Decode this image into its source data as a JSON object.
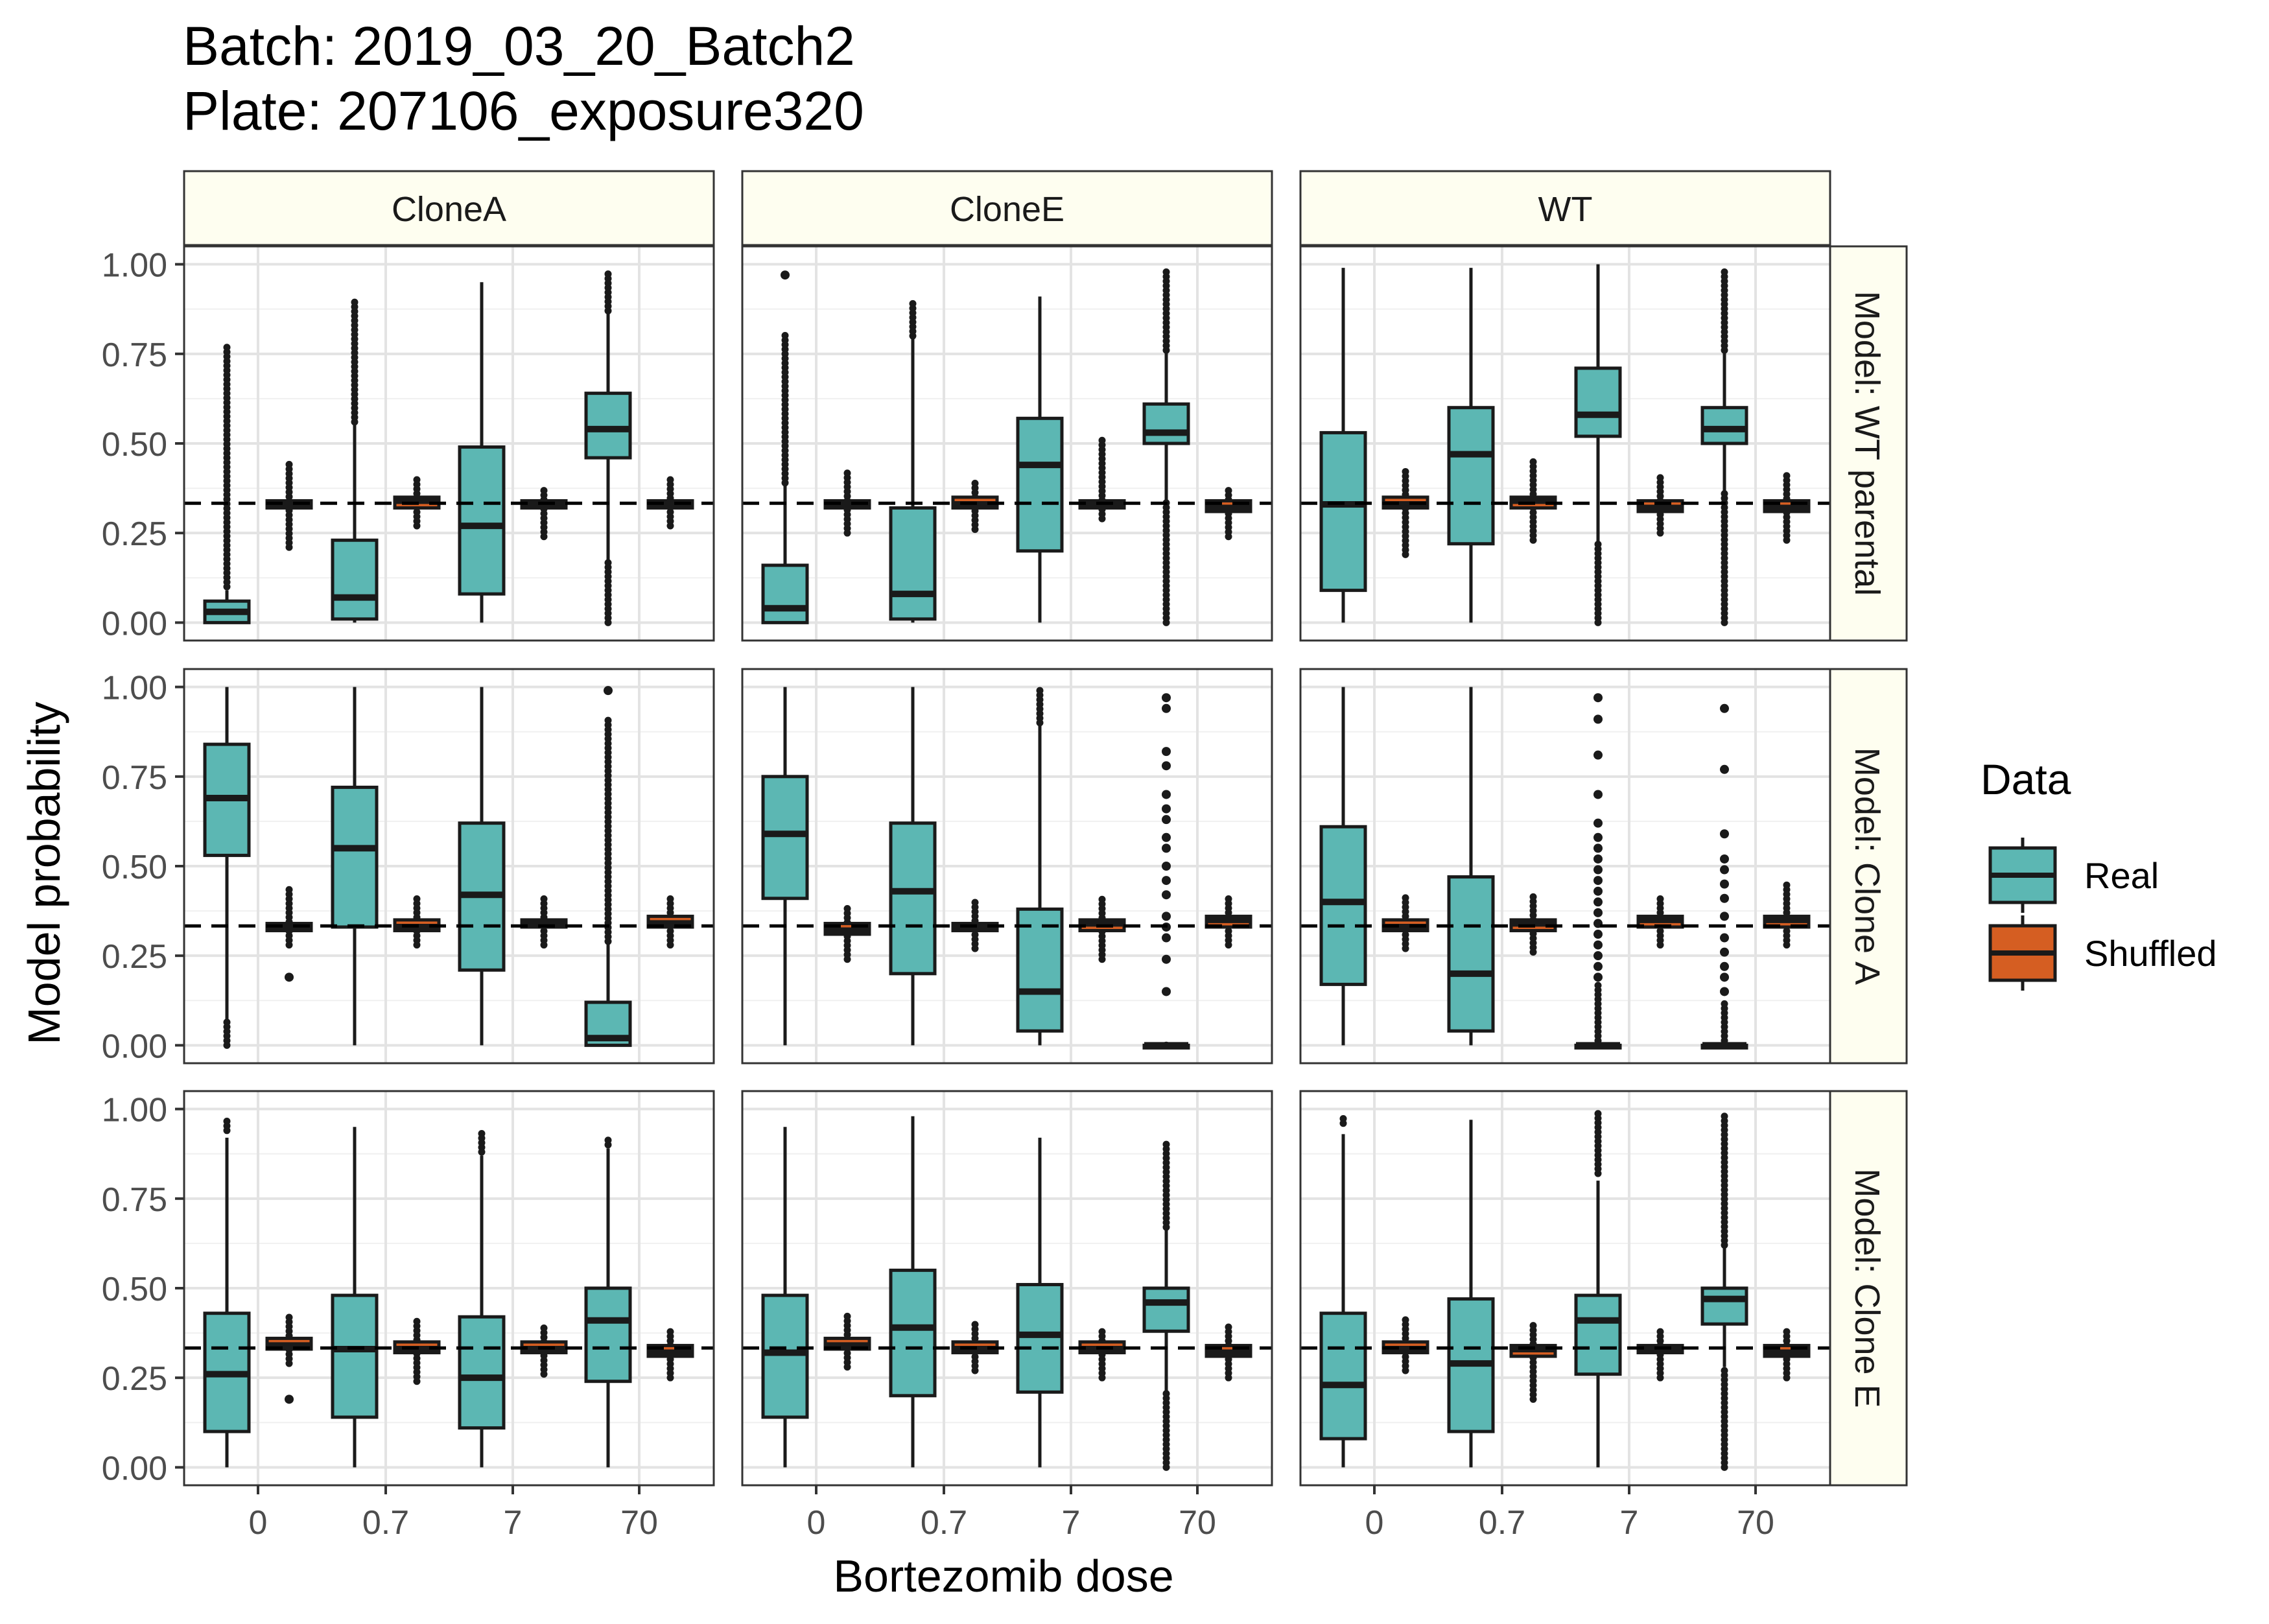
{
  "title_lines": [
    "Batch: 2019_03_20_Batch2",
    "Plate: 207106_exposure320"
  ],
  "chart_data": {
    "type": "box",
    "facet_columns": [
      "CloneA",
      "CloneE",
      "WT"
    ],
    "facet_rows": [
      "Model: WT parental",
      "Model: Clone A",
      "Model: Clone E"
    ],
    "categories": [
      "0",
      "0.7",
      "7",
      "70"
    ],
    "xlabel": "Bortezomib dose",
    "ylabel": "Model probability",
    "ylim": [
      -0.05,
      1.05
    ],
    "yticks": [
      0,
      0.25,
      0.5,
      0.75,
      1
    ],
    "ytick_labels": [
      "0.00",
      "0.25",
      "0.50",
      "0.75",
      "1.00"
    ],
    "reference_line": 0.333,
    "legend": {
      "title": "Data",
      "position": "right",
      "entries": [
        {
          "name": "Real",
          "color": "#5CB7B3"
        },
        {
          "name": "Shuffled",
          "color": "#D55E22"
        }
      ]
    },
    "strip_fill": "#FEFEF0",
    "grid": true,
    "panels": [
      {
        "row": 0,
        "col": 0,
        "real": [
          {
            "q1": 0.0,
            "med": 0.03,
            "q3": 0.06,
            "lo": 0.0,
            "hi": 0.09,
            "out_from": 0.1,
            "out_to": 0.78
          },
          {
            "q1": 0.01,
            "med": 0.07,
            "q3": 0.23,
            "lo": 0.0,
            "hi": 0.56,
            "out_from": 0.56,
            "out_to": 0.9
          },
          {
            "q1": 0.08,
            "med": 0.27,
            "q3": 0.49,
            "lo": 0.0,
            "hi": 0.95
          },
          {
            "q1": 0.46,
            "med": 0.54,
            "q3": 0.64,
            "lo": 0.17,
            "hi": 0.87,
            "out_from": 0.87,
            "out_to": 0.98,
            "out2_from": 0.0,
            "out2_to": 0.17
          }
        ],
        "shuffled": [
          {
            "q1": 0.32,
            "med": 0.33,
            "q3": 0.34,
            "lo": 0.3,
            "hi": 0.36,
            "out_from": 0.21,
            "out_to": 0.45
          },
          {
            "q1": 0.32,
            "med": 0.34,
            "q3": 0.35,
            "lo": 0.3,
            "hi": 0.37,
            "out_from": 0.27,
            "out_to": 0.41
          },
          {
            "q1": 0.32,
            "med": 0.33,
            "q3": 0.34,
            "lo": 0.3,
            "hi": 0.36,
            "out_from": 0.24,
            "out_to": 0.38
          },
          {
            "q1": 0.32,
            "med": 0.33,
            "q3": 0.34,
            "lo": 0.3,
            "hi": 0.36,
            "out_from": 0.27,
            "out_to": 0.41
          }
        ]
      },
      {
        "row": 0,
        "col": 1,
        "real": [
          {
            "q1": 0.0,
            "med": 0.04,
            "q3": 0.16,
            "lo": 0.0,
            "hi": 0.39,
            "out_from": 0.39,
            "out_to": 0.81,
            "extra": [
              0.97
            ]
          },
          {
            "q1": 0.01,
            "med": 0.08,
            "q3": 0.32,
            "lo": 0.0,
            "hi": 0.8,
            "out_from": 0.8,
            "out_to": 0.9
          },
          {
            "q1": 0.2,
            "med": 0.44,
            "q3": 0.57,
            "lo": 0.0,
            "hi": 0.91
          },
          {
            "q1": 0.5,
            "med": 0.53,
            "q3": 0.61,
            "lo": 0.34,
            "hi": 0.76,
            "out_from": 0.76,
            "out_to": 0.98,
            "out2_from": 0.0,
            "out2_to": 0.34
          }
        ],
        "shuffled": [
          {
            "q1": 0.32,
            "med": 0.33,
            "q3": 0.34,
            "lo": 0.3,
            "hi": 0.36,
            "out_from": 0.25,
            "out_to": 0.42
          },
          {
            "q1": 0.32,
            "med": 0.33,
            "q3": 0.35,
            "lo": 0.3,
            "hi": 0.37,
            "out_from": 0.26,
            "out_to": 0.4
          },
          {
            "q1": 0.32,
            "med": 0.33,
            "q3": 0.34,
            "lo": 0.3,
            "hi": 0.36,
            "out_from": 0.29,
            "out_to": 0.51
          },
          {
            "q1": 0.31,
            "med": 0.32,
            "q3": 0.34,
            "lo": 0.29,
            "hi": 0.36,
            "out_from": 0.24,
            "out_to": 0.38
          }
        ]
      },
      {
        "row": 0,
        "col": 2,
        "real": [
          {
            "q1": 0.09,
            "med": 0.33,
            "q3": 0.53,
            "lo": 0.0,
            "hi": 0.99
          },
          {
            "q1": 0.22,
            "med": 0.47,
            "q3": 0.6,
            "lo": 0.0,
            "hi": 0.99
          },
          {
            "q1": 0.52,
            "med": 0.58,
            "q3": 0.71,
            "lo": 0.22,
            "hi": 1.0,
            "out2_from": 0.0,
            "out2_to": 0.22
          },
          {
            "q1": 0.5,
            "med": 0.54,
            "q3": 0.6,
            "lo": 0.36,
            "hi": 0.76,
            "out_from": 0.76,
            "out_to": 0.99,
            "out2_from": 0.0,
            "out2_to": 0.36
          }
        ],
        "shuffled": [
          {
            "q1": 0.32,
            "med": 0.33,
            "q3": 0.35,
            "lo": 0.3,
            "hi": 0.37,
            "out_from": 0.19,
            "out_to": 0.43
          },
          {
            "q1": 0.32,
            "med": 0.34,
            "q3": 0.35,
            "lo": 0.3,
            "hi": 0.37,
            "out_from": 0.23,
            "out_to": 0.46
          },
          {
            "q1": 0.31,
            "med": 0.32,
            "q3": 0.34,
            "lo": 0.29,
            "hi": 0.36,
            "out_from": 0.25,
            "out_to": 0.41
          },
          {
            "q1": 0.31,
            "med": 0.32,
            "q3": 0.34,
            "lo": 0.29,
            "hi": 0.36,
            "out_from": 0.23,
            "out_to": 0.41
          }
        ]
      },
      {
        "row": 1,
        "col": 0,
        "real": [
          {
            "q1": 0.53,
            "med": 0.69,
            "q3": 0.84,
            "lo": 0.07,
            "hi": 1.0,
            "out2_from": 0.0,
            "out2_to": 0.07
          },
          {
            "q1": 0.33,
            "med": 0.55,
            "q3": 0.72,
            "lo": 0.0,
            "hi": 1.0
          },
          {
            "q1": 0.21,
            "med": 0.42,
            "q3": 0.62,
            "lo": 0.0,
            "hi": 1.0
          },
          {
            "q1": 0.0,
            "med": 0.02,
            "q3": 0.12,
            "lo": 0.0,
            "hi": 0.29,
            "out_from": 0.29,
            "out_to": 0.91,
            "extra": [
              0.99
            ]
          }
        ],
        "shuffled": [
          {
            "q1": 0.32,
            "med": 0.33,
            "q3": 0.34,
            "lo": 0.3,
            "hi": 0.36,
            "out_from": 0.28,
            "out_to": 0.44,
            "extra": [
              0.19
            ]
          },
          {
            "q1": 0.32,
            "med": 0.33,
            "q3": 0.35,
            "lo": 0.3,
            "hi": 0.37,
            "out_from": 0.28,
            "out_to": 0.41
          },
          {
            "q1": 0.33,
            "med": 0.34,
            "q3": 0.35,
            "lo": 0.31,
            "hi": 0.37,
            "out_from": 0.28,
            "out_to": 0.41
          },
          {
            "q1": 0.33,
            "med": 0.34,
            "q3": 0.36,
            "lo": 0.31,
            "hi": 0.38,
            "out_from": 0.28,
            "out_to": 0.41
          }
        ]
      },
      {
        "row": 1,
        "col": 1,
        "real": [
          {
            "q1": 0.41,
            "med": 0.59,
            "q3": 0.75,
            "lo": 0.0,
            "hi": 1.0
          },
          {
            "q1": 0.2,
            "med": 0.43,
            "q3": 0.62,
            "lo": 0.0,
            "hi": 1.0
          },
          {
            "q1": 0.04,
            "med": 0.15,
            "q3": 0.38,
            "lo": 0.0,
            "hi": 0.9,
            "out_from": 0.9,
            "out_to": 1.0
          },
          {
            "q1": 0.0,
            "med": 0.0,
            "q3": 0.0,
            "lo": 0.0,
            "hi": 0.0,
            "out_from": 0.0,
            "out_to": 0.01,
            "extra": [
              0.15,
              0.24,
              0.3,
              0.33,
              0.36,
              0.42,
              0.46,
              0.5,
              0.55,
              0.58,
              0.63,
              0.66,
              0.7,
              0.78,
              0.82,
              0.94,
              0.97
            ]
          }
        ],
        "shuffled": [
          {
            "q1": 0.31,
            "med": 0.32,
            "q3": 0.34,
            "lo": 0.29,
            "hi": 0.36,
            "out_from": 0.24,
            "out_to": 0.39
          },
          {
            "q1": 0.32,
            "med": 0.33,
            "q3": 0.34,
            "lo": 0.3,
            "hi": 0.36,
            "out_from": 0.27,
            "out_to": 0.4
          },
          {
            "q1": 0.32,
            "med": 0.34,
            "q3": 0.35,
            "lo": 0.3,
            "hi": 0.37,
            "out_from": 0.24,
            "out_to": 0.41
          },
          {
            "q1": 0.33,
            "med": 0.35,
            "q3": 0.36,
            "lo": 0.31,
            "hi": 0.38,
            "out_from": 0.28,
            "out_to": 0.41
          }
        ]
      },
      {
        "row": 1,
        "col": 2,
        "real": [
          {
            "q1": 0.17,
            "med": 0.4,
            "q3": 0.61,
            "lo": 0.0,
            "hi": 1.0
          },
          {
            "q1": 0.04,
            "med": 0.2,
            "q3": 0.47,
            "lo": 0.0,
            "hi": 1.0
          },
          {
            "q1": 0.0,
            "med": 0.0,
            "q3": 0.0,
            "lo": 0.0,
            "hi": 0.0,
            "out_from": 0.0,
            "out_to": 0.17,
            "extra": [
              0.19,
              0.22,
              0.25,
              0.28,
              0.31,
              0.34,
              0.37,
              0.4,
              0.43,
              0.46,
              0.49,
              0.52,
              0.55,
              0.58,
              0.62,
              0.7,
              0.81,
              0.91,
              0.97
            ]
          },
          {
            "q1": 0.0,
            "med": 0.0,
            "q3": 0.0,
            "lo": 0.0,
            "hi": 0.0,
            "out_from": 0.0,
            "out_to": 0.12,
            "extra": [
              0.15,
              0.19,
              0.22,
              0.26,
              0.3,
              0.36,
              0.41,
              0.45,
              0.49,
              0.52,
              0.59,
              0.77,
              0.94
            ]
          }
        ],
        "shuffled": [
          {
            "q1": 0.32,
            "med": 0.33,
            "q3": 0.35,
            "lo": 0.3,
            "hi": 0.37,
            "out_from": 0.27,
            "out_to": 0.42
          },
          {
            "q1": 0.32,
            "med": 0.34,
            "q3": 0.35,
            "lo": 0.3,
            "hi": 0.37,
            "out_from": 0.26,
            "out_to": 0.42
          },
          {
            "q1": 0.33,
            "med": 0.35,
            "q3": 0.36,
            "lo": 0.31,
            "hi": 0.38,
            "out_from": 0.28,
            "out_to": 0.42
          },
          {
            "q1": 0.33,
            "med": 0.35,
            "q3": 0.36,
            "lo": 0.31,
            "hi": 0.38,
            "out_from": 0.28,
            "out_to": 0.45
          }
        ]
      },
      {
        "row": 2,
        "col": 0,
        "real": [
          {
            "q1": 0.1,
            "med": 0.26,
            "q3": 0.43,
            "lo": 0.0,
            "hi": 0.92,
            "out_from": 0.94,
            "out_to": 0.97
          },
          {
            "q1": 0.14,
            "med": 0.33,
            "q3": 0.48,
            "lo": 0.0,
            "hi": 0.95
          },
          {
            "q1": 0.11,
            "med": 0.25,
            "q3": 0.42,
            "lo": 0.0,
            "hi": 0.87,
            "out_from": 0.88,
            "out_to": 0.94
          },
          {
            "q1": 0.24,
            "med": 0.41,
            "q3": 0.5,
            "lo": 0.0,
            "hi": 0.89,
            "out_from": 0.9,
            "out_to": 0.92
          }
        ],
        "shuffled": [
          {
            "q1": 0.33,
            "med": 0.34,
            "q3": 0.36,
            "lo": 0.31,
            "hi": 0.38,
            "out_from": 0.29,
            "out_to": 0.43,
            "extra": [
              0.19
            ]
          },
          {
            "q1": 0.32,
            "med": 0.33,
            "q3": 0.35,
            "lo": 0.3,
            "hi": 0.37,
            "out_from": 0.24,
            "out_to": 0.41
          },
          {
            "q1": 0.32,
            "med": 0.33,
            "q3": 0.35,
            "lo": 0.3,
            "hi": 0.37,
            "out_from": 0.26,
            "out_to": 0.39
          },
          {
            "q1": 0.31,
            "med": 0.32,
            "q3": 0.34,
            "lo": 0.29,
            "hi": 0.36,
            "out_from": 0.25,
            "out_to": 0.39
          }
        ]
      },
      {
        "row": 2,
        "col": 1,
        "real": [
          {
            "q1": 0.14,
            "med": 0.32,
            "q3": 0.48,
            "lo": 0.0,
            "hi": 0.95
          },
          {
            "q1": 0.2,
            "med": 0.39,
            "q3": 0.55,
            "lo": 0.0,
            "hi": 0.98
          },
          {
            "q1": 0.21,
            "med": 0.37,
            "q3": 0.51,
            "lo": 0.0,
            "hi": 0.92
          },
          {
            "q1": 0.38,
            "med": 0.46,
            "q3": 0.5,
            "lo": 0.21,
            "hi": 0.67,
            "out_from": 0.67,
            "out_to": 0.91,
            "out2_from": 0.0,
            "out2_to": 0.21
          }
        ],
        "shuffled": [
          {
            "q1": 0.33,
            "med": 0.34,
            "q3": 0.36,
            "lo": 0.31,
            "hi": 0.38,
            "out_from": 0.28,
            "out_to": 0.43
          },
          {
            "q1": 0.32,
            "med": 0.33,
            "q3": 0.35,
            "lo": 0.3,
            "hi": 0.37,
            "out_from": 0.27,
            "out_to": 0.4
          },
          {
            "q1": 0.32,
            "med": 0.33,
            "q3": 0.35,
            "lo": 0.3,
            "hi": 0.37,
            "out_from": 0.25,
            "out_to": 0.39
          },
          {
            "q1": 0.31,
            "med": 0.32,
            "q3": 0.34,
            "lo": 0.29,
            "hi": 0.36,
            "out_from": 0.25,
            "out_to": 0.4
          }
        ]
      },
      {
        "row": 2,
        "col": 2,
        "real": [
          {
            "q1": 0.08,
            "med": 0.23,
            "q3": 0.43,
            "lo": 0.0,
            "hi": 0.93,
            "out_from": 0.96,
            "out_to": 0.98
          },
          {
            "q1": 0.1,
            "med": 0.29,
            "q3": 0.47,
            "lo": 0.0,
            "hi": 0.97
          },
          {
            "q1": 0.26,
            "med": 0.41,
            "q3": 0.48,
            "lo": 0.0,
            "hi": 0.8,
            "out_from": 0.82,
            "out_to": 0.99
          },
          {
            "q1": 0.4,
            "med": 0.47,
            "q3": 0.5,
            "lo": 0.28,
            "hi": 0.62,
            "out_from": 0.62,
            "out_to": 0.99,
            "out2_from": 0.0,
            "out2_to": 0.28
          }
        ],
        "shuffled": [
          {
            "q1": 0.32,
            "med": 0.33,
            "q3": 0.35,
            "lo": 0.3,
            "hi": 0.37,
            "out_from": 0.27,
            "out_to": 0.42
          },
          {
            "q1": 0.31,
            "med": 0.33,
            "q3": 0.34,
            "lo": 0.29,
            "hi": 0.36,
            "out_from": 0.19,
            "out_to": 0.4
          },
          {
            "q1": 0.32,
            "med": 0.33,
            "q3": 0.34,
            "lo": 0.3,
            "hi": 0.36,
            "out_from": 0.25,
            "out_to": 0.39
          },
          {
            "q1": 0.31,
            "med": 0.32,
            "q3": 0.34,
            "lo": 0.29,
            "hi": 0.36,
            "out_from": 0.25,
            "out_to": 0.38
          }
        ]
      }
    ]
  }
}
